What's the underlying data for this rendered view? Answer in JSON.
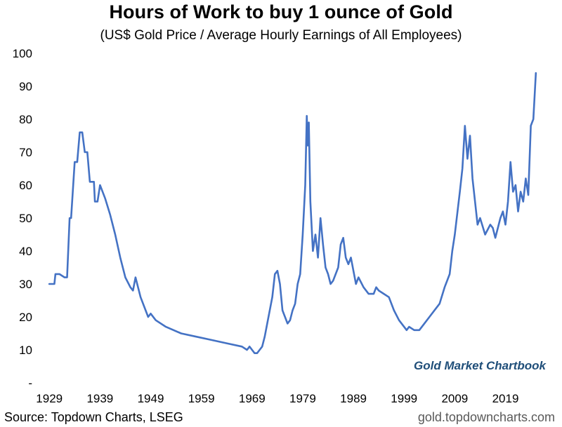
{
  "chart_data": {
    "type": "line",
    "title": "Hours of Work to buy 1 ounce of Gold",
    "subtitle": "(US$ Gold Price / Average Hourly Earnings of All Employees)",
    "xlabel": "",
    "ylabel": "",
    "xlim": [
      1928,
      2026
    ],
    "ylim": [
      0,
      100
    ],
    "x_ticks": [
      "1929",
      "1939",
      "1949",
      "1959",
      "1969",
      "1979",
      "1989",
      "1999",
      "2009",
      "2019"
    ],
    "y_ticks": [
      "-",
      "10",
      "20",
      "30",
      "40",
      "50",
      "60",
      "70",
      "80",
      "90",
      "100"
    ],
    "grid": false,
    "legend": "none",
    "annotation": "Gold Market Chartbook",
    "series": [
      {
        "color": "#4472c4",
        "x": [
          1929,
          1930,
          1930.2,
          1931,
          1932,
          1932.5,
          1933,
          1933.3,
          1934,
          1934.5,
          1935,
          1935.5,
          1936,
          1936.5,
          1937,
          1937.8,
          1938,
          1938.5,
          1939,
          1940,
          1941,
          1942,
          1943,
          1944,
          1945,
          1945.5,
          1946,
          1947,
          1948,
          1948.5,
          1949,
          1950,
          1952,
          1955,
          1958,
          1961,
          1964,
          1967,
          1968,
          1968.5,
          1969,
          1969.5,
          1970,
          1970.5,
          1971,
          1971.5,
          1972,
          1973,
          1973.5,
          1974,
          1974.5,
          1975,
          1975.5,
          1976,
          1976.5,
          1977,
          1977.5,
          1978,
          1978.5,
          1979,
          1979.5,
          1979.8,
          1980,
          1980.2,
          1980.5,
          1981,
          1981.5,
          1982,
          1982.5,
          1983,
          1983.5,
          1984,
          1984.5,
          1985,
          1986,
          1986.5,
          1987,
          1987.5,
          1988,
          1988.5,
          1989,
          1989.5,
          1990,
          1991,
          1992,
          1993,
          1993.5,
          1994,
          1995,
          1996,
          1997,
          1998,
          1999,
          1999.5,
          2000,
          2001,
          2002,
          2003,
          2004,
          2005,
          2006,
          2007,
          2008,
          2008.5,
          2009,
          2010,
          2010.5,
          2011,
          2011.5,
          2012,
          2012.5,
          2013,
          2013.5,
          2014,
          2015,
          2016,
          2016.5,
          2017,
          2018,
          2018.5,
          2019,
          2019.5,
          2020,
          2020.5,
          2021,
          2021.5,
          2022,
          2022.5,
          2023,
          2023.5,
          2024,
          2024.5,
          2025
        ],
        "values": [
          30,
          30,
          33,
          33,
          32,
          32,
          50,
          50,
          67,
          67,
          76,
          76,
          70,
          70,
          61,
          61,
          55,
          55,
          60,
          56,
          51,
          45,
          38,
          32,
          29,
          28,
          32,
          26,
          22,
          20,
          21,
          19,
          17,
          15,
          14,
          13,
          12,
          11,
          10,
          11,
          10,
          9,
          9,
          10,
          11,
          14,
          18,
          26,
          33,
          34,
          30,
          22,
          20,
          18,
          19,
          22,
          24,
          30,
          33,
          45,
          60,
          81,
          72,
          79,
          55,
          40,
          45,
          38,
          50,
          42,
          35,
          33,
          30,
          31,
          35,
          42,
          44,
          38,
          36,
          38,
          34,
          30,
          32,
          29,
          27,
          27,
          29,
          28,
          27,
          26,
          22,
          19,
          17,
          16,
          17,
          16,
          16,
          18,
          20,
          22,
          24,
          29,
          33,
          40,
          45,
          58,
          65,
          78,
          68,
          75,
          62,
          55,
          48,
          50,
          45,
          48,
          47,
          44,
          50,
          52,
          48,
          55,
          67,
          58,
          60,
          52,
          58,
          55,
          62,
          57,
          78,
          80,
          94
        ]
      }
    ]
  },
  "footer": {
    "source": "Source: Topdown Charts, LSEG",
    "site": "gold.topdowncharts.com"
  }
}
